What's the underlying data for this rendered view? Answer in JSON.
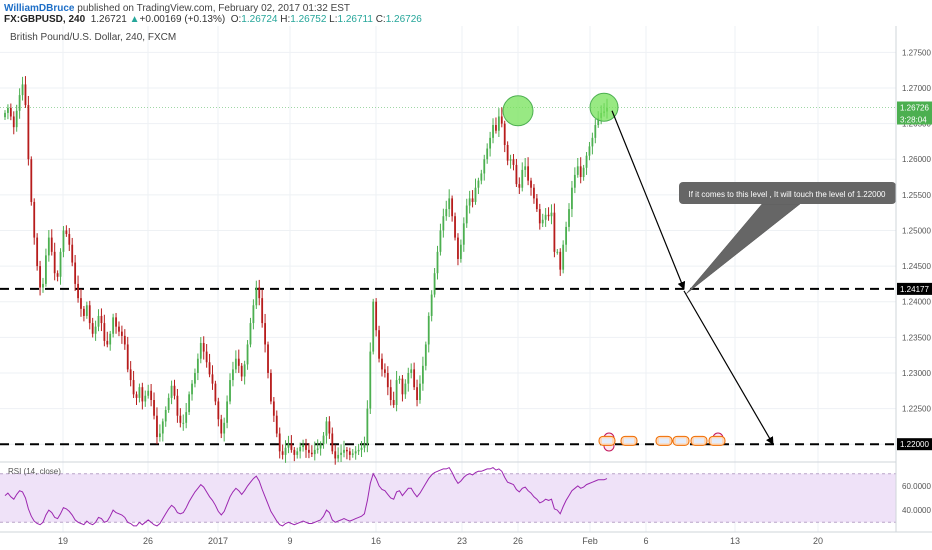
{
  "header": {
    "user": "WilliamDBruce",
    "published_text": "published on TradingView.com, February 02, 2017 01:32 EST",
    "symbol": "FX:GBPUSD, 240",
    "last": "1.26721",
    "change_arrow": "▲",
    "change": "+0.00169 (+0.13%)",
    "o_label": "O:",
    "o_value": "1.26724",
    "h_label": "H:",
    "h_value": "1.26752",
    "l_label": "L:",
    "l_value": "1.26711",
    "c_label": "C:",
    "c_value": "1.26726"
  },
  "colors": {
    "up": "#4caf50",
    "down": "#b71c1c",
    "rsi_line": "#9c27b0",
    "rsi_band": "#efe2f8",
    "circle": "#76e25a",
    "annotation_bg": "#666666"
  },
  "chart_data": {
    "type": "candlestick",
    "title": "British Pound/U.S. Dollar, 240, FXCM",
    "ylim": [
      1.2175,
      1.2787
    ],
    "y_ticks": [
      "1.27500",
      "1.27000",
      "1.26500",
      "1.26000",
      "1.25500",
      "1.25000",
      "1.24500",
      "1.24000",
      "1.23500",
      "1.23000",
      "1.22500",
      "1.22000"
    ],
    "y_tick_values": [
      1.275,
      1.27,
      1.265,
      1.26,
      1.255,
      1.25,
      1.245,
      1.24,
      1.235,
      1.23,
      1.225,
      1.22
    ],
    "x_tick_labels": [
      "19",
      "26",
      "2017",
      "9",
      "16",
      "23",
      "26",
      "Feb",
      "6",
      "13",
      "20"
    ],
    "last_price_label": "1.26726",
    "countdown_label": "3:28:04",
    "level_labels": [
      "1.24177",
      "1.22000"
    ],
    "levels": [
      1.2418,
      1.22
    ],
    "annotation": "If  it comes to this level ,  It will touch the level of 1.22000",
    "closes": [
      1.2665,
      1.2672,
      1.266,
      1.2645,
      1.2668,
      1.269,
      1.2705,
      1.2676,
      1.26,
      1.254,
      1.249,
      1.245,
      1.242,
      1.2425,
      1.2465,
      1.249,
      1.247,
      1.244,
      1.2435,
      1.247,
      1.25,
      1.2495,
      1.248,
      1.2455,
      1.2425,
      1.2405,
      1.239,
      1.238,
      1.2395,
      1.237,
      1.2355,
      1.2365,
      1.238,
      1.237,
      1.2345,
      1.234,
      1.2355,
      1.2378,
      1.2365,
      1.2358,
      1.2352,
      1.234,
      1.2305,
      1.229,
      1.227,
      1.2265,
      1.228,
      1.226,
      1.2268,
      1.2275,
      1.2262,
      1.224,
      1.221,
      1.2215,
      1.2232,
      1.2248,
      1.2265,
      1.2282,
      1.2268,
      1.224,
      1.223,
      1.223,
      1.2245,
      1.227,
      1.2285,
      1.23,
      1.232,
      1.2342,
      1.233,
      1.2315,
      1.2298,
      1.2285,
      1.226,
      1.2235,
      1.2215,
      1.223,
      1.226,
      1.229,
      1.2305,
      1.232,
      1.231,
      1.2295,
      1.2312,
      1.234,
      1.237,
      1.2395,
      1.242,
      1.2405,
      1.237,
      1.234,
      1.23,
      1.226,
      1.224,
      1.2215,
      1.219,
      1.2185,
      1.2195,
      1.22,
      1.2192,
      1.2185,
      1.219,
      1.2196,
      1.2199,
      1.2192,
      1.2188,
      1.2186,
      1.2192,
      1.2194,
      1.22,
      1.2212,
      1.2232,
      1.2215,
      1.219,
      1.218,
      1.2185,
      1.2188,
      1.2192,
      1.219,
      1.2185,
      1.2187,
      1.219,
      1.2192,
      1.2195,
      1.22,
      1.225,
      1.233,
      1.24,
      1.236,
      1.232,
      1.2305,
      1.23,
      1.228,
      1.2262,
      1.2255,
      1.229,
      1.2292,
      1.227,
      1.2285,
      1.23,
      1.2305,
      1.228,
      1.2262,
      1.2285,
      1.231,
      1.234,
      1.238,
      1.241,
      1.244,
      1.247,
      1.25,
      1.252,
      1.253,
      1.2545,
      1.252,
      1.249,
      1.246,
      1.248,
      1.251,
      1.2535,
      1.2545,
      1.254,
      1.256,
      1.257,
      1.258,
      1.26,
      1.2615,
      1.263,
      1.2648,
      1.264,
      1.266,
      1.265,
      1.262,
      1.2598,
      1.26,
      1.2592,
      1.2565,
      1.256,
      1.2585,
      1.259,
      1.257,
      1.256,
      1.2545,
      1.253,
      1.251,
      1.2515,
      1.2522,
      1.252,
      1.2525,
      1.247,
      1.247,
      1.2445,
      1.248,
      1.2505,
      1.253,
      1.256,
      1.2578,
      1.259,
      1.2575,
      1.2588,
      1.2605,
      1.2618,
      1.263,
      1.2648,
      1.2658,
      1.2665,
      1.2667,
      1.2672
    ]
  },
  "rsi": {
    "label": "RSI (14, close)",
    "ticks": [
      "60.0000",
      "40.0000"
    ],
    "tick_values": [
      60,
      40
    ],
    "band": [
      30,
      70
    ],
    "ylim": [
      22,
      78
    ],
    "values": [
      52,
      54,
      51,
      49,
      53,
      56,
      55,
      50,
      41,
      35,
      31,
      29,
      28,
      30,
      36,
      40,
      38,
      34,
      33,
      37,
      42,
      41,
      39,
      36,
      32,
      30,
      29,
      28,
      31,
      29,
      28,
      30,
      34,
      33,
      30,
      31,
      35,
      40,
      38,
      37,
      36,
      34,
      30,
      29,
      27,
      27,
      30,
      28,
      30,
      32,
      30,
      28,
      27,
      29,
      33,
      37,
      41,
      44,
      42,
      38,
      37,
      38,
      42,
      47,
      51,
      55,
      58,
      61,
      59,
      55,
      51,
      48,
      44,
      39,
      36,
      39,
      45,
      51,
      55,
      58,
      56,
      53,
      56,
      60,
      63,
      66,
      68,
      64,
      57,
      51,
      45,
      39,
      35,
      31,
      28,
      27,
      29,
      30,
      29,
      28,
      29,
      30,
      31,
      30,
      29,
      29,
      30,
      31,
      32,
      35,
      40,
      38,
      32,
      30,
      31,
      32,
      33,
      32,
      31,
      32,
      33,
      34,
      35,
      37,
      48,
      62,
      70,
      66,
      60,
      57,
      56,
      53,
      50,
      49,
      55,
      56,
      52,
      55,
      58,
      58,
      54,
      51,
      54,
      58,
      62,
      66,
      69,
      71,
      72,
      73,
      74,
      74,
      75,
      71,
      66,
      62,
      64,
      67,
      69,
      70,
      69,
      71,
      72,
      72,
      73,
      74,
      74,
      75,
      73,
      74,
      72,
      67,
      63,
      62,
      61,
      57,
      55,
      58,
      59,
      56,
      54,
      51,
      49,
      46,
      47,
      49,
      48,
      49,
      41,
      40,
      37,
      43,
      48,
      52,
      56,
      58,
      60,
      58,
      59,
      61,
      62,
      63,
      64,
      65,
      65,
      65,
      66
    ]
  }
}
